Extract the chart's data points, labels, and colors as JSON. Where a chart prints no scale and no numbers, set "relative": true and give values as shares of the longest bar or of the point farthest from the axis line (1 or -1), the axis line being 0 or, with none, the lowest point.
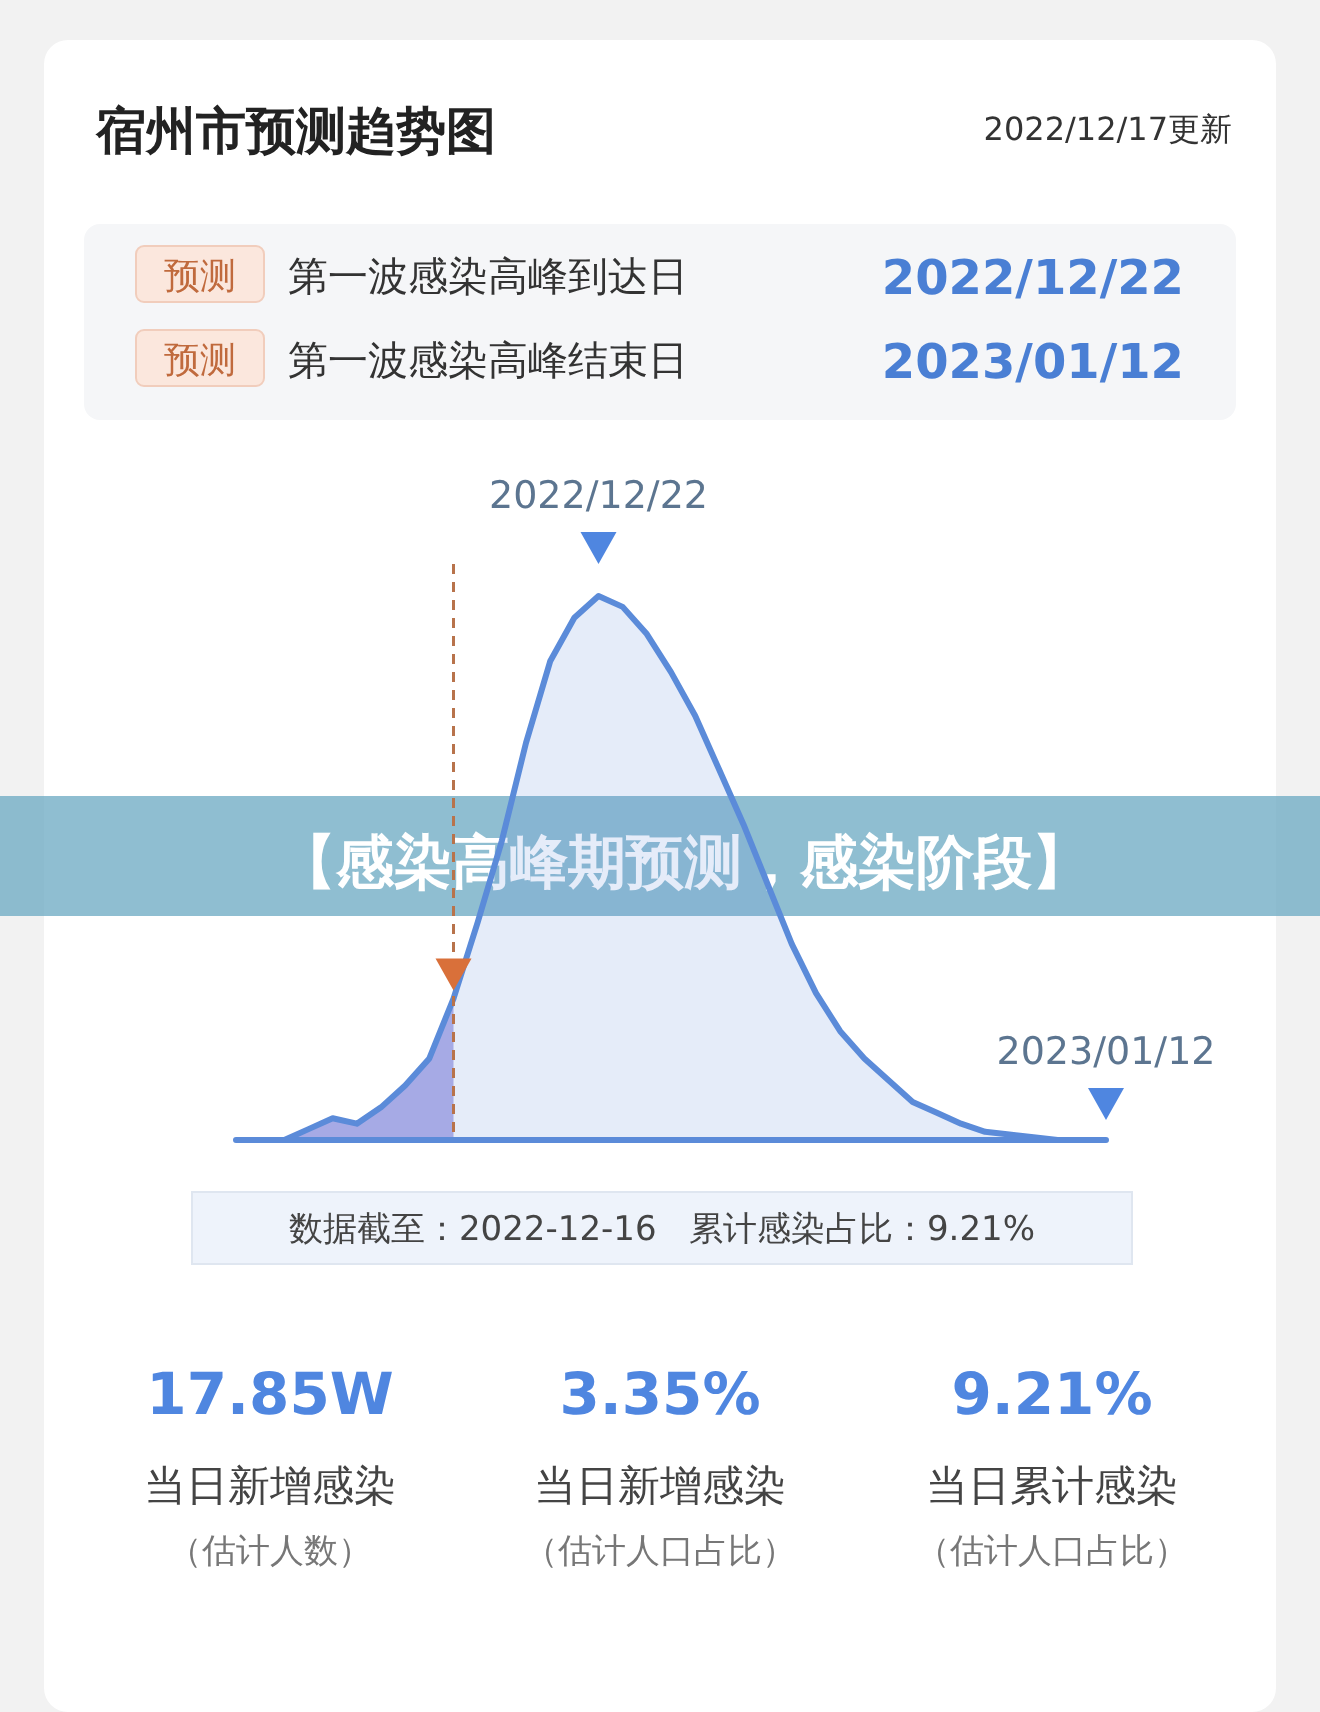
{
  "chart_data": {
    "type": "area",
    "title": "宿州市预测趋势图",
    "subtitle": "2022/12/17更新",
    "relative": true,
    "categories": [
      null,
      null,
      null,
      null,
      null,
      null,
      null,
      null,
      null,
      null,
      null,
      null,
      null,
      null,
      null,
      null,
      null,
      null,
      null,
      null,
      null,
      null,
      null,
      null,
      null,
      null,
      null,
      null,
      null,
      null,
      null,
      null,
      null,
      null,
      null,
      null,
      null
    ],
    "series": [
      {
        "color": "#aca9e6",
        "values": [
          0,
          0,
          0,
          0.02,
          0.04,
          0.03,
          0.06,
          0.1,
          0.15,
          0.26,
          null,
          null,
          null,
          null,
          null,
          null,
          null,
          null,
          null,
          null,
          null,
          null,
          null,
          null,
          null,
          null,
          null,
          null,
          null,
          null,
          null,
          null,
          null,
          null,
          null,
          null,
          null
        ]
      },
      {
        "color": "#5b8bd9",
        "values": [
          0,
          0,
          0,
          0.02,
          0.04,
          0.03,
          0.06,
          0.1,
          0.15,
          0.26,
          0.4,
          0.55,
          0.73,
          0.88,
          0.96,
          1,
          0.98,
          0.93,
          0.86,
          0.78,
          0.68,
          0.58,
          0.47,
          0.36,
          0.27,
          0.2,
          0.15,
          0.11,
          0.07,
          0.05,
          0.03,
          0.015,
          0.01,
          0.005,
          0,
          0,
          0
        ]
      }
    ],
    "annotations": [
      "预测",
      "第一波感染高峰到达日",
      "2022/12/22",
      "预测",
      "第一波感染高峰结束日",
      "2023/01/12",
      "2022/12/22",
      "2023/01/12",
      "数据截至：2022-12-16   累计感染占比：9.21%",
      "17.85W",
      "当日新增感染",
      "（估计人数）",
      "3.35%",
      "当日新增感染",
      "（估计人口占比）",
      "9.21%",
      "当日累计感染",
      "（估计人口占比）",
      "【感染高峰期预测，感染阶段】"
    ]
  }
}
